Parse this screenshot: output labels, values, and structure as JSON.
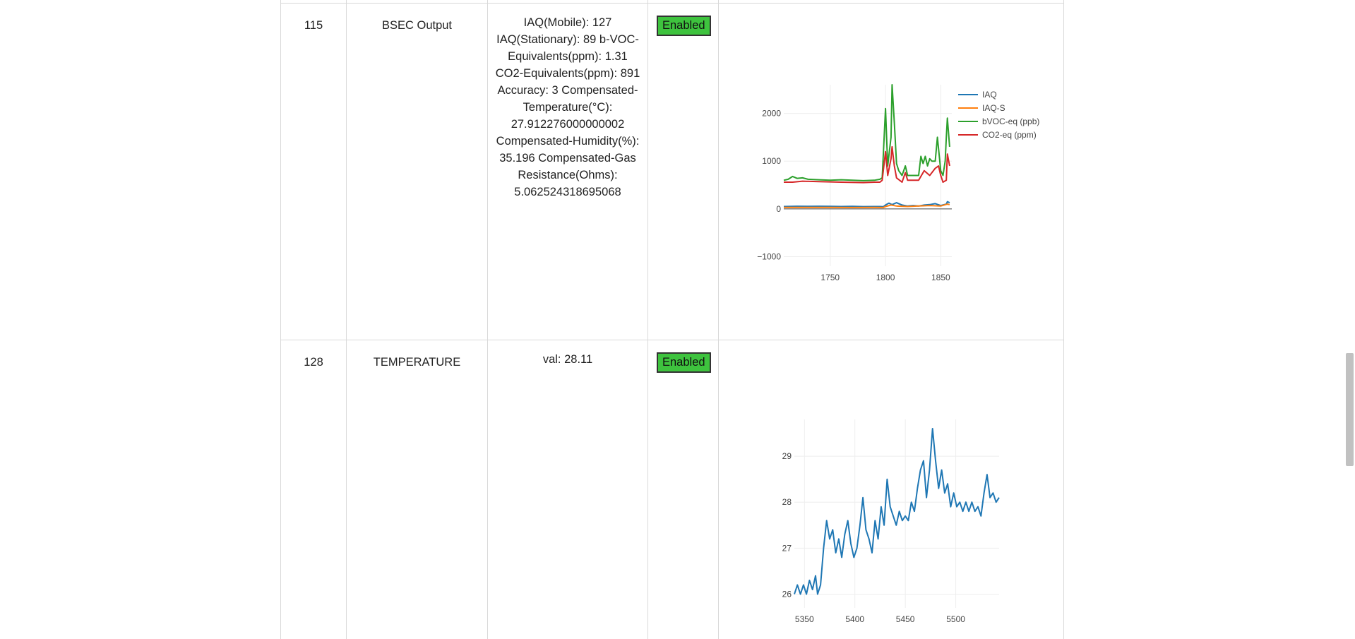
{
  "rows": [
    {
      "id": "115",
      "name": "BSEC Output",
      "value_lines": [
        "IAQ(Mobile): 127",
        "IAQ(Stationary): 89 b-VOC-",
        "Equivalents(ppm): 1.31",
        "CO2-Equivalents(ppm): 891",
        "Accuracy: 3 Compensated-",
        "Temperature(°C):",
        "27.912276000000002",
        "Compensated-Humidity(%):",
        "35.196 Compensated-Gas",
        "Resistance(Ohms):",
        "5.062524318695068"
      ],
      "status": "Enabled"
    },
    {
      "id": "128",
      "name": "TEMPERATURE",
      "value_lines": [
        "val: 28.11"
      ],
      "status": "Enabled"
    }
  ],
  "colors": {
    "enabled_bg": "#3ec33e",
    "iaq": "#1f77b4",
    "iaqs": "#ff7f0e",
    "bvoc": "#2ca02c",
    "co2": "#d62728"
  },
  "chart_data": [
    {
      "type": "line",
      "title": "",
      "xlim": [
        1708,
        1860
      ],
      "ylim": [
        -1200,
        2600
      ],
      "x_ticks": [
        1750,
        1800,
        1850
      ],
      "y_ticks": [
        -1000,
        0,
        1000,
        2000
      ],
      "y_tick_labels": [
        "−1000",
        "0",
        "1000",
        "2000"
      ],
      "legend": "top-right",
      "series": [
        {
          "name": "IAQ",
          "color": "#1f77b4",
          "x": [
            1708,
            1720,
            1730,
            1740,
            1750,
            1760,
            1770,
            1780,
            1790,
            1795,
            1798,
            1800,
            1803,
            1806,
            1810,
            1815,
            1820,
            1825,
            1830,
            1835,
            1840,
            1845,
            1850,
            1855,
            1856,
            1858
          ],
          "y": [
            50,
            55,
            52,
            55,
            53,
            50,
            52,
            48,
            50,
            50,
            45,
            80,
            120,
            90,
            130,
            80,
            60,
            70,
            60,
            80,
            90,
            110,
            70,
            100,
            150,
            130
          ]
        },
        {
          "name": "IAQ-S",
          "color": "#ff7f0e",
          "x": [
            1708,
            1730,
            1750,
            1770,
            1790,
            1798,
            1800,
            1805,
            1810,
            1820,
            1830,
            1840,
            1850,
            1856,
            1858
          ],
          "y": [
            30,
            32,
            30,
            28,
            30,
            28,
            50,
            80,
            60,
            50,
            60,
            70,
            60,
            100,
            90
          ]
        },
        {
          "name": "bVOC-eq (ppb)",
          "color": "#2ca02c",
          "x": [
            1708,
            1712,
            1716,
            1720,
            1725,
            1730,
            1740,
            1750,
            1760,
            1770,
            1780,
            1790,
            1795,
            1797,
            1800,
            1802,
            1805,
            1806,
            1808,
            1810,
            1812,
            1815,
            1818,
            1820,
            1825,
            1830,
            1832,
            1834,
            1836,
            1838,
            1840,
            1842,
            1845,
            1847,
            1850,
            1852,
            1854,
            1855,
            1856,
            1858
          ],
          "y": [
            600,
            620,
            680,
            640,
            650,
            620,
            610,
            600,
            610,
            600,
            590,
            600,
            620,
            650,
            2100,
            900,
            1500,
            2600,
            1800,
            950,
            800,
            700,
            900,
            700,
            700,
            700,
            1100,
            950,
            1100,
            900,
            1050,
            1000,
            1000,
            1500,
            800,
            700,
            1000,
            1500,
            1900,
            1300
          ]
        },
        {
          "name": "CO2-eq (ppm)",
          "color": "#d62728",
          "x": [
            1708,
            1716,
            1725,
            1740,
            1760,
            1780,
            1790,
            1795,
            1797,
            1800,
            1802,
            1805,
            1806,
            1808,
            1810,
            1815,
            1818,
            1820,
            1825,
            1830,
            1835,
            1840,
            1845,
            1848,
            1850,
            1852,
            1855,
            1856,
            1858
          ],
          "y": [
            560,
            560,
            580,
            570,
            560,
            550,
            560,
            560,
            600,
            1200,
            700,
            1050,
            1300,
            900,
            650,
            560,
            760,
            600,
            600,
            600,
            800,
            700,
            850,
            900,
            700,
            560,
            600,
            1150,
            900
          ]
        }
      ]
    },
    {
      "type": "line",
      "title": "",
      "xlim": [
        5340,
        5543
      ],
      "ylim": [
        25.7,
        29.8
      ],
      "x_ticks": [
        5350,
        5400,
        5450,
        5500
      ],
      "y_ticks": [
        26,
        27,
        28,
        29
      ],
      "series": [
        {
          "name": "",
          "color": "#1f77b4",
          "x": [
            5340,
            5343,
            5346,
            5349,
            5352,
            5355,
            5358,
            5361,
            5363,
            5366,
            5369,
            5372,
            5375,
            5378,
            5381,
            5384,
            5387,
            5390,
            5393,
            5396,
            5399,
            5402,
            5405,
            5408,
            5411,
            5414,
            5417,
            5420,
            5423,
            5426,
            5429,
            5432,
            5435,
            5438,
            5441,
            5444,
            5447,
            5450,
            5453,
            5456,
            5459,
            5462,
            5465,
            5468,
            5471,
            5474,
            5477,
            5480,
            5483,
            5486,
            5489,
            5492,
            5495,
            5498,
            5501,
            5504,
            5507,
            5510,
            5513,
            5516,
            5519,
            5522,
            5525,
            5528,
            5531,
            5534,
            5537,
            5540,
            5543
          ],
          "y": [
            26.0,
            26.2,
            26.0,
            26.2,
            26.0,
            26.3,
            26.1,
            26.4,
            26.0,
            26.2,
            27.0,
            27.6,
            27.2,
            27.4,
            26.9,
            27.2,
            26.8,
            27.3,
            27.6,
            27.1,
            26.8,
            27.0,
            27.5,
            28.1,
            27.4,
            27.2,
            26.9,
            27.6,
            27.2,
            27.9,
            27.5,
            28.5,
            27.9,
            27.7,
            27.5,
            27.8,
            27.6,
            27.7,
            27.6,
            28.0,
            27.8,
            28.3,
            28.7,
            28.9,
            28.1,
            28.7,
            29.6,
            28.9,
            28.3,
            28.7,
            28.2,
            28.4,
            27.9,
            28.2,
            27.9,
            28.0,
            27.8,
            28.0,
            27.8,
            28.0,
            27.8,
            27.9,
            27.7,
            28.2,
            28.6,
            28.1,
            28.2,
            28.0,
            28.1
          ]
        }
      ]
    }
  ]
}
